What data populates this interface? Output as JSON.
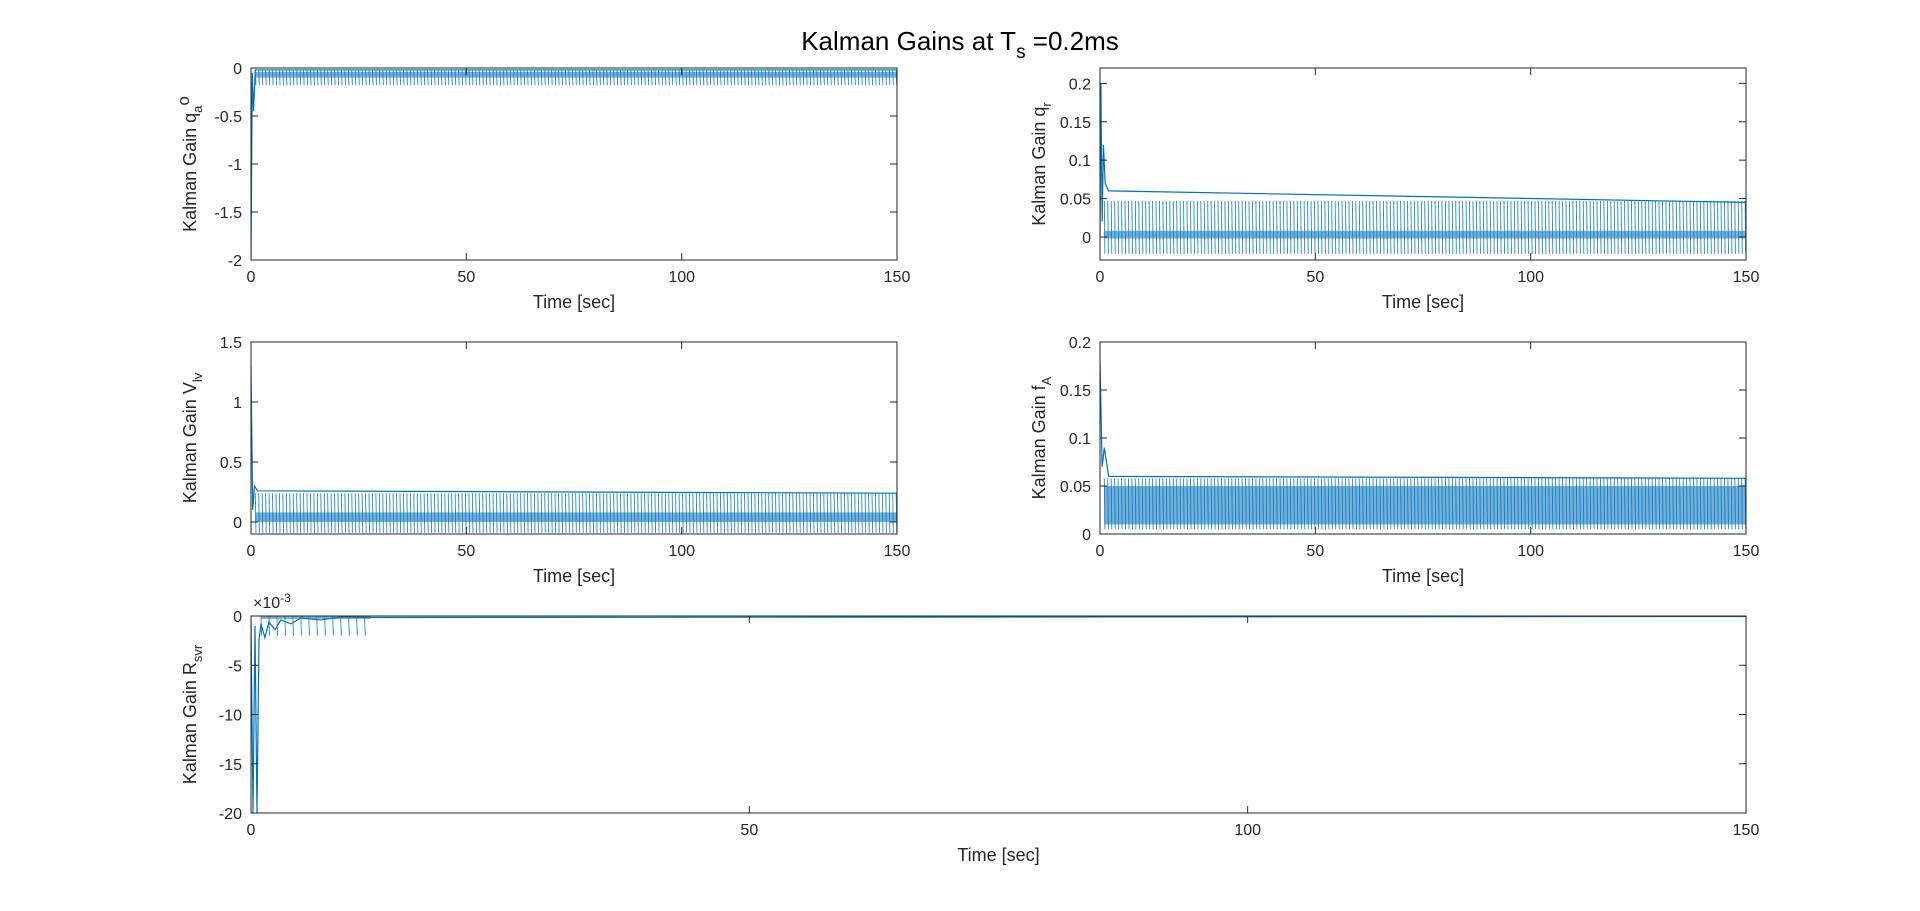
{
  "figure": {
    "title_parts": {
      "base": "Kalman Gains at T",
      "sub": "s",
      "tail": " =0.2ms"
    },
    "line_color": "#0072bd",
    "axis_color": "#262626"
  },
  "chart_data": [
    {
      "type": "line",
      "ylabel_parts": {
        "base": "Kalman Gain q",
        "sub": "a",
        "sup": "o"
      },
      "xlabel": "Time [sec]",
      "xlim": [
        0,
        150
      ],
      "ylim": [
        -2,
        0
      ],
      "xticks": [
        0,
        50,
        100,
        150
      ],
      "yticks": [
        -2,
        -1.5,
        -1,
        -0.5,
        0
      ],
      "ytick_labels": [
        "-2",
        "-1.5",
        "-1",
        "-0.5",
        "0"
      ],
      "series": [
        {
          "values": [
            [
              0,
              -2.0
            ],
            [
              0.3,
              -0.05
            ],
            [
              0.6,
              -0.45
            ],
            [
              1.0,
              -0.02
            ],
            [
              150,
              -0.02
            ]
          ]
        }
      ],
      "oscillation": {
        "x_start": 1.0,
        "x_end": 150,
        "high": -0.02,
        "low": -0.18,
        "dense_band": [
          -0.1,
          -0.04
        ]
      }
    },
    {
      "type": "line",
      "ylabel_parts": {
        "base": "Kalman Gain q",
        "sub": "r",
        "sup": ""
      },
      "xlabel": "Time [sec]",
      "xlim": [
        0,
        150
      ],
      "ylim": [
        -0.03,
        0.22
      ],
      "xticks": [
        0,
        50,
        100,
        150
      ],
      "yticks": [
        0,
        0.05,
        0.1,
        0.15,
        0.2
      ],
      "ytick_labels": [
        "0",
        "0.05",
        "0.1",
        "0.15",
        "0.2"
      ],
      "series": [
        {
          "values": [
            [
              0,
              0.0
            ],
            [
              0.2,
              0.2
            ],
            [
              0.5,
              0.02
            ],
            [
              0.8,
              0.12
            ],
            [
              1.2,
              0.07
            ],
            [
              2.0,
              0.06
            ],
            [
              150,
              0.045
            ]
          ]
        }
      ],
      "oscillation": {
        "x_start": 1.0,
        "x_end": 150,
        "high": 0.047,
        "low": -0.022,
        "dense_band": [
          -0.002,
          0.008
        ]
      }
    },
    {
      "type": "line",
      "ylabel_parts": {
        "base": "Kalman Gain V",
        "sub": "lv",
        "sup": ""
      },
      "xlabel": "Time [sec]",
      "xlim": [
        0,
        150
      ],
      "ylim": [
        -0.1,
        1.5
      ],
      "xticks": [
        0,
        50,
        100,
        150
      ],
      "yticks": [
        0,
        0.5,
        1,
        1.5
      ],
      "ytick_labels": [
        "0",
        "0.5",
        "1",
        "1.5"
      ],
      "series": [
        {
          "values": [
            [
              0,
              1.3
            ],
            [
              0.4,
              0.1
            ],
            [
              0.8,
              0.3
            ],
            [
              1.5,
              0.26
            ],
            [
              150,
              0.24
            ]
          ]
        }
      ],
      "oscillation": {
        "x_start": 1.0,
        "x_end": 150,
        "high": 0.24,
        "low": -0.09,
        "dense_band": [
          0.0,
          0.08
        ]
      }
    },
    {
      "type": "line",
      "ylabel_parts": {
        "base": "Kalman Gain f",
        "sub": "A",
        "sup": ""
      },
      "xlabel": "Time [sec]",
      "xlim": [
        0,
        150
      ],
      "ylim": [
        0,
        0.2
      ],
      "xticks": [
        0,
        50,
        100,
        150
      ],
      "yticks": [
        0,
        0.05,
        0.1,
        0.15,
        0.2
      ],
      "ytick_labels": [
        "0",
        "0.05",
        "0.1",
        "0.15",
        "0.2"
      ],
      "series": [
        {
          "values": [
            [
              0,
              0.18
            ],
            [
              0.5,
              0.07
            ],
            [
              1.0,
              0.09
            ],
            [
              2.0,
              0.06
            ],
            [
              150,
              0.058
            ]
          ]
        }
      ],
      "oscillation": {
        "x_start": 1.0,
        "x_end": 150,
        "high": 0.058,
        "low": 0.005,
        "dense_band": [
          0.01,
          0.05
        ]
      }
    },
    {
      "type": "line",
      "ylabel_parts": {
        "base": "Kalman Gain R",
        "sub": "svr",
        "sup": ""
      },
      "xlabel": "Time [sec]",
      "xlim": [
        0,
        150
      ],
      "ylim": [
        -20,
        0
      ],
      "exponent_label_base": "×10",
      "exponent_label_power": "-3",
      "xticks": [
        0,
        50,
        100,
        150
      ],
      "yticks": [
        -20,
        -15,
        -10,
        -5,
        0
      ],
      "ytick_labels": [
        "-20",
        "-15",
        "-10",
        "-5",
        "0"
      ],
      "series": [
        {
          "values": [
            [
              0,
              -0.5
            ],
            [
              0.2,
              -20
            ],
            [
              0.4,
              -1.0
            ],
            [
              0.6,
              -20
            ],
            [
              0.8,
              -2.5
            ],
            [
              1.0,
              -0.8
            ],
            [
              1.4,
              -2.2
            ],
            [
              1.8,
              -0.6
            ],
            [
              2.4,
              -1.4
            ],
            [
              3.0,
              -0.4
            ],
            [
              4.0,
              -0.8
            ],
            [
              5.0,
              -0.2
            ],
            [
              7.0,
              -0.4
            ],
            [
              9.0,
              -0.1
            ],
            [
              12.0,
              -0.15
            ],
            [
              150,
              -0.05
            ]
          ]
        }
      ],
      "oscillation": {
        "x_start": 1.0,
        "x_end": 12,
        "high": -0.05,
        "low": -2.0,
        "dense_band": [
          -0.3,
          -0.05
        ]
      }
    }
  ]
}
